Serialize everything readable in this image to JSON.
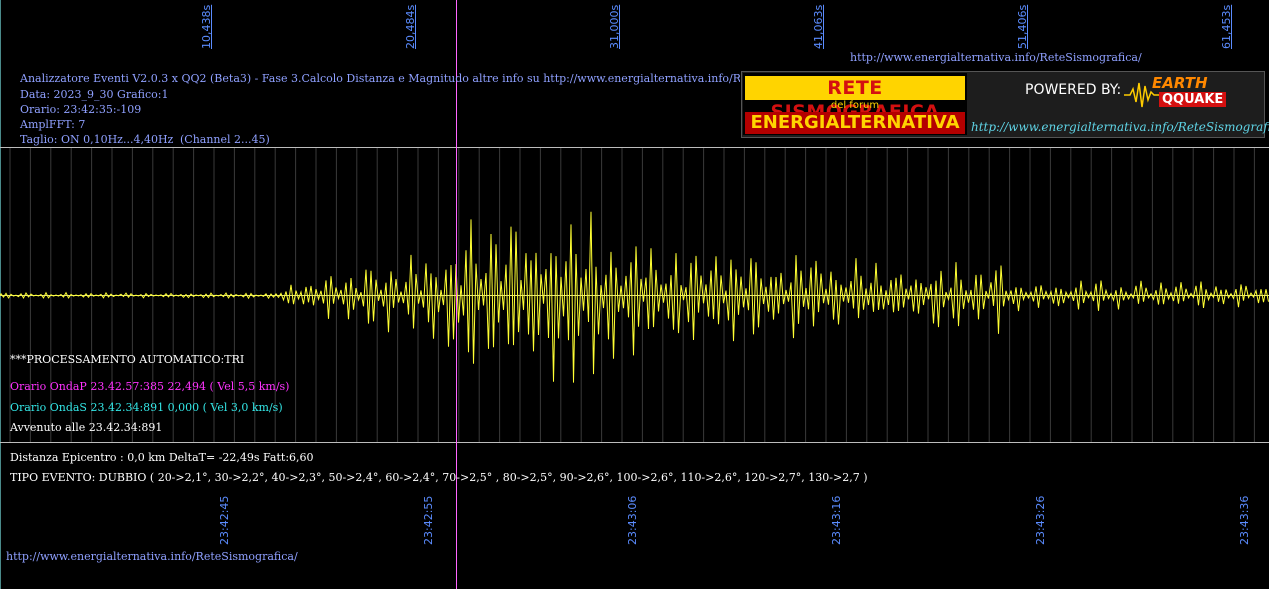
{
  "header": {
    "line1": "Analizzatore Eventi V2.0.3 x QQ2 (Beta3) - Fase 3.Calcolo Distanza e Magnitudo altre info su http://www.energialternativa.info/ReteSism",
    "line2": "Data: 2023_9_30 Grafico:1",
    "line3": "Orario: 23:42:35:-109",
    "line4": "AmplFFT: 7",
    "line5": "Taglio: ON 0,10Hz...4,40Hz",
    "line5_channel": "(Channel 2...45)"
  },
  "top_url": "http://www.energialternativa.info/ReteSismografica/",
  "bottom_url": "http://www.energialternativa.info/ReteSismografica/",
  "logo": {
    "line1": "RETE SISMOGRAFICA",
    "line2": "del forum",
    "line3": "ENERGIALTERNATIVA",
    "powered_by": "POWERED BY:",
    "earth": "EARTH",
    "qquake": "QQUAKE",
    "url": "http://www.energialternativa.info/ReteSismografica"
  },
  "top_ticks": [
    "10,438s",
    "20,484s",
    "31,000s",
    "41,063s",
    "51,406s",
    "61,453s"
  ],
  "bottom_ticks": [
    "23:42:45",
    "23:42:55",
    "23:43:06",
    "23:43:16",
    "23:43:26",
    "23:43:36"
  ],
  "annotations": {
    "processing": "***PROCESSAMENTO AUTOMATICO:TRI",
    "p_wave": "Orario OndaP 23.42.57:385  22,494 ( Vel 5,5 km/s)",
    "s_wave": "Orario OndaS 23.42.34:891  0,000 ( Vel 3,0 km/s)",
    "occurred": "Avvenuto alle 23.42.34:891",
    "distance": "Distanza Epicentro : 0,0 km DeltaT= -22,49s  Fatt:6,60",
    "event_type": "TIPO EVENTO: DUBBIO ( 20->2,1°, 30->2,2°, 40->2,3°, 50->2,4°, 60->2,4°, 70->2,5° , 80->2,5°, 90->2,6°, 100->2,6°, 110->2,6°, 120->2,7°, 130->2,7 )"
  },
  "colors": {
    "background": "#000000",
    "trace": "#ffff33",
    "grid": "#8a8a8a",
    "header_text": "#8fa0ff",
    "tick_text": "#5b8cff",
    "p_wave": "#ff33ff",
    "s_wave": "#33e6e6",
    "marker": "#ff66ff",
    "white_text": "#ffffff"
  }
}
